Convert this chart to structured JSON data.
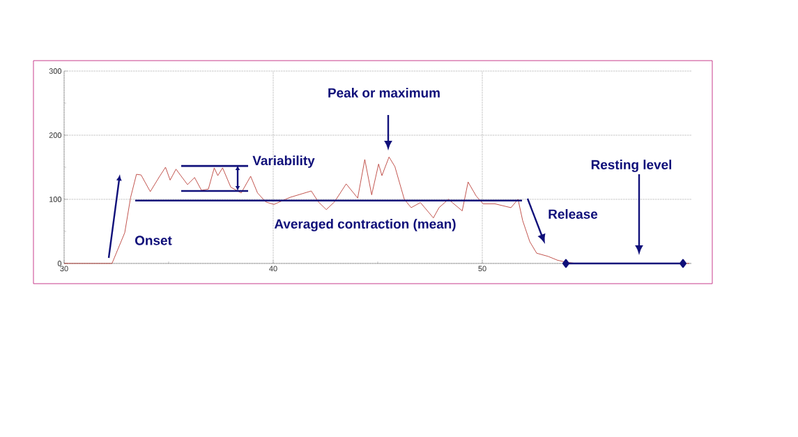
{
  "chart_data": {
    "type": "line",
    "xlim": [
      30,
      60
    ],
    "ylim": [
      0,
      300
    ],
    "xticks": [
      30,
      40,
      50
    ],
    "yticks": [
      0,
      100,
      200,
      300
    ],
    "grid": true,
    "series": [
      {
        "color": "#b22a22",
        "x": [
          30,
          32.29,
          32.9,
          33.18,
          33.46,
          33.68,
          34.12,
          34.57,
          34.85,
          35.07,
          35.35,
          35.9,
          36.24,
          36.57,
          36.9,
          37.18,
          37.35,
          37.58,
          37.97,
          38.47,
          38.92,
          39.25,
          39.64,
          40.03,
          40.8,
          41.82,
          42.16,
          42.54,
          42.93,
          43.49,
          44.04,
          44.38,
          44.71,
          45.04,
          45.2,
          45.54,
          45.82,
          46.27,
          46.6,
          47.04,
          47.66,
          47.93,
          48.38,
          49.04,
          49.32,
          49.71,
          50.04,
          50.6,
          51.37,
          51.71,
          51.93,
          52.27,
          52.6,
          53.15,
          53.6,
          54.0,
          54.5,
          59.9
        ],
        "values": [
          0,
          0,
          48,
          103,
          139,
          138,
          112,
          136,
          150,
          130,
          147,
          123,
          134,
          114,
          116,
          149,
          137,
          149,
          119,
          110,
          136,
          110,
          96,
          92,
          103,
          113,
          96,
          84,
          96,
          124,
          102,
          162,
          107,
          155,
          137,
          166,
          151,
          100,
          87,
          95,
          71,
          87,
          100,
          82,
          127,
          105,
          93,
          93,
          87,
          100,
          67,
          34,
          16,
          11,
          5,
          2,
          0,
          0
        ]
      },
      {
        "type": "line",
        "color": "#10107a",
        "x": [
          33.4,
          51.9
        ],
        "values": [
          98,
          98
        ]
      },
      {
        "type": "line",
        "color": "#10107a",
        "x": [
          35.6,
          38.8
        ],
        "values": [
          152,
          152
        ]
      },
      {
        "type": "line",
        "color": "#10107a",
        "x": [
          35.6,
          38.8
        ],
        "values": [
          113,
          113
        ]
      },
      {
        "type": "line",
        "color": "#10107a",
        "marker": "diamond",
        "x": [
          54.0,
          59.6
        ],
        "values": [
          0,
          0
        ]
      }
    ],
    "annotations": [
      "Onset",
      "Variability",
      "Peak or maximum",
      "Averaged contraction (mean)",
      "Release",
      "Resting level"
    ]
  }
}
